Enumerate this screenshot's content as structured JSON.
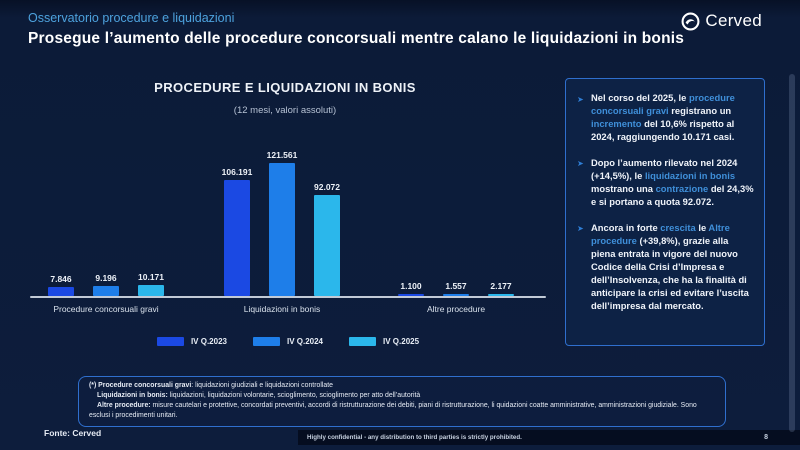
{
  "slide": {
    "eyebrow": "Osservatorio procedure e liquidazioni",
    "title": "Prosegue l’aumento delle procedure concorsuali mentre calano le liquidazioni in bonis",
    "logo_text": "Cerved",
    "source": "Fonte: Cerved",
    "confidential": "Highly confidential - any distribution to third parties is strictly prohibited.",
    "page_number": "8"
  },
  "chart_data": {
    "type": "bar",
    "title": "PROCEDURE E LIQUIDAZIONI IN BONIS",
    "subtitle": "(12 mesi, valori assoluti)",
    "categories": [
      "Procedure concorsuali gravi",
      "Liquidazioni in bonis",
      "Altre procedure"
    ],
    "series": [
      {
        "name": "IV Q.2023",
        "color": "#1b49e3",
        "values": [
          7846,
          106191,
          1100
        ],
        "labels": [
          "7.846",
          "106.191",
          "1.100"
        ]
      },
      {
        "name": "IV Q.2024",
        "color": "#1e7ee9",
        "values": [
          9196,
          121561,
          1557
        ],
        "labels": [
          "9.196",
          "121.561",
          "1.557"
        ]
      },
      {
        "name": "IV Q.2025",
        "color": "#2bb7eb",
        "values": [
          10171,
          92072,
          2177
        ],
        "labels": [
          "10.171",
          "92.072",
          "2.177"
        ]
      }
    ],
    "ylim": [
      0,
      125000
    ],
    "grid": false,
    "legend_position": "bottom"
  },
  "insights": {
    "marker": "➤",
    "bullets": [
      {
        "segments": [
          {
            "t": "Nel corso del 2025, le "
          },
          {
            "t": "procedure concorsuali gravi",
            "h": true
          },
          {
            "t": " registrano un "
          },
          {
            "t": "incremento",
            "h": true
          },
          {
            "t": " del 10,6% rispetto al 2024, raggiungendo 10.171 casi."
          }
        ]
      },
      {
        "segments": [
          {
            "t": "Dopo l’aumento rilevato nel 2024 (+14,5%), le "
          },
          {
            "t": "liquidazioni in bonis",
            "h": true
          },
          {
            "t": " mostrano una "
          },
          {
            "t": "contrazione",
            "h": true
          },
          {
            "t": " del 24,3% e si portano a quota 92.072."
          }
        ]
      },
      {
        "segments": [
          {
            "t": "Ancora in forte "
          },
          {
            "t": "crescita",
            "h": true
          },
          {
            "t": " le "
          },
          {
            "t": "Altre procedure",
            "h": true
          },
          {
            "t": " (+39,8%), grazie alla piena entrata in vigore del nuovo Codice della Crisi d’Impresa e dell’Insolvenza, che ha la finalità di anticipare la crisi ed evitare l’uscita dell’impresa dal mercato."
          }
        ]
      }
    ]
  },
  "footnotes": {
    "lines": [
      {
        "lead": "(*) Procedure concorsuali gravi",
        "rest": ": liquidazioni giudiziali e liquidazioni controllate",
        "indent": false
      },
      {
        "lead": "Liquidazioni in bonis:",
        "rest": " liquidazioni, liquidazioni volontarie, scioglimento, scioglimento per atto dell’autorità",
        "indent": true
      },
      {
        "lead": "Altre procedure:",
        "rest": " misure cautelari e protettive, concordati preventivi, accordi di ristrutturazione dei debiti, piani di ristrutturazione, li quidazioni coatte amministrative, amministrazioni giudiziale. Sono esclusi i procedimenti unitari.",
        "indent": true
      }
    ]
  },
  "colors": {
    "background": "#0d1d3c",
    "accent_light_blue": "#4da2dd",
    "highlight_text": "#3f8fd9",
    "panel_border": "#2f6fce",
    "bar_2023": "#1b49e3",
    "bar_2024": "#1e7ee9",
    "bar_2025": "#2bb7eb",
    "axis_line": "#c2cad6"
  }
}
